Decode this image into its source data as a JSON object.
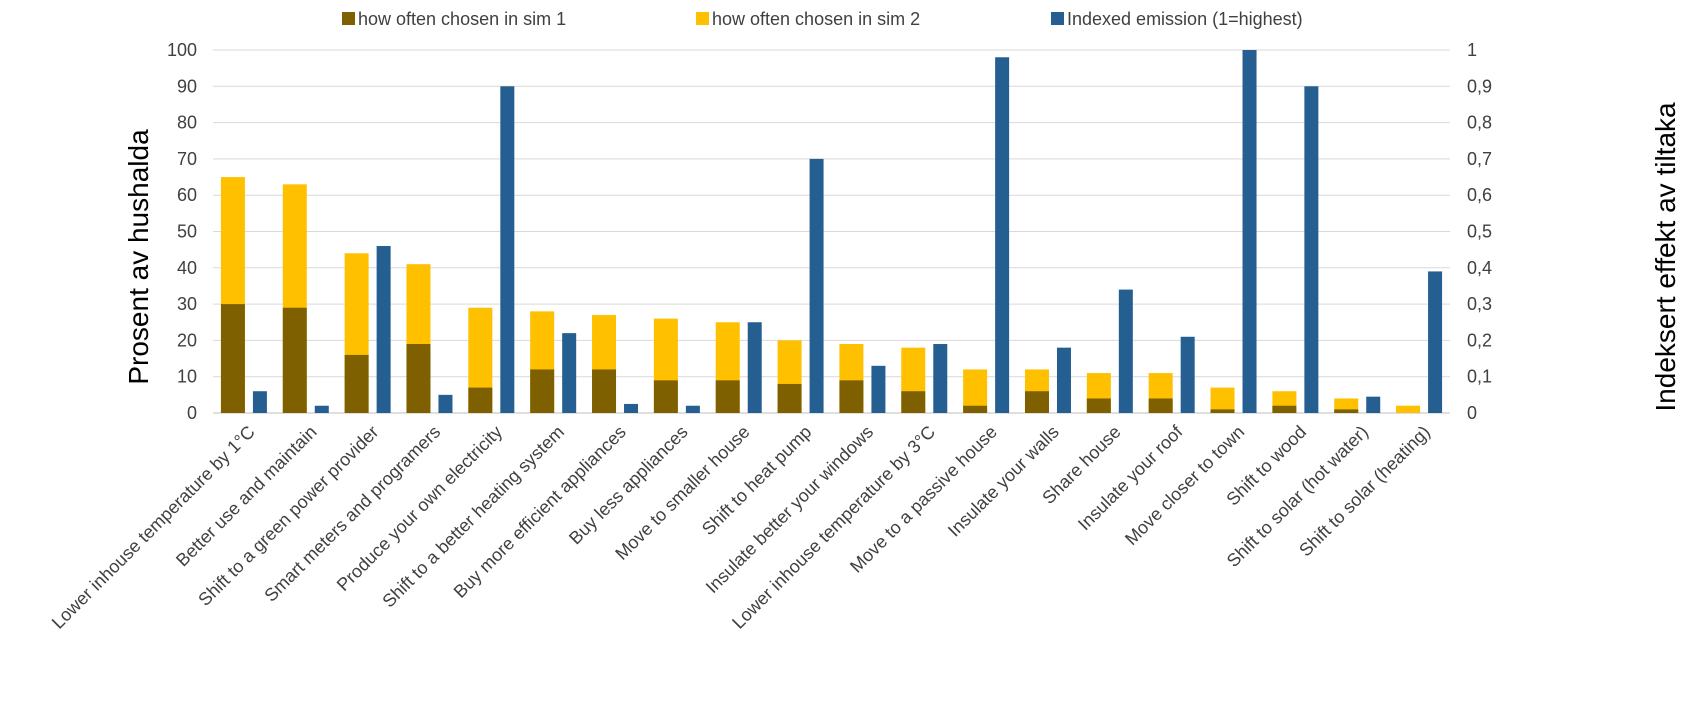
{
  "chart_data": {
    "type": "bar",
    "y_left_label": "Prosent av hushalda",
    "y_right_label": "Indeksert effekt av tiltaka",
    "y_left_ticks": [
      "0",
      "10",
      "20",
      "30",
      "40",
      "50",
      "60",
      "70",
      "80",
      "90",
      "100"
    ],
    "y_right_ticks": [
      "0",
      "0,1",
      "0,2",
      "0,3",
      "0,4",
      "0,5",
      "0,6",
      "0,7",
      "0,8",
      "0,9",
      "1"
    ],
    "ylim_left": [
      0,
      100
    ],
    "ylim_right": [
      0,
      1
    ],
    "grid": true,
    "legend_position": "top",
    "categories": [
      "Lower inhouse temperature by 1°C",
      "Better use and maintain",
      "Shift to a green power provider",
      "Smart meters and programers",
      "Produce your own electricity",
      "Shift to a better heating system",
      "Buy more efficient appliances",
      "Buy less appliances",
      "Move to smaller house",
      "Shift to heat pump",
      "Insulate better your windows",
      "Lower inhouse temperature by 3°C",
      "Move to a passive house",
      "Insulate your walls",
      "Share house",
      "Insulate your roof",
      "Move closer to town",
      "Shift to wood",
      "Shift to solar (hot water)",
      "Shift to solar (heating)"
    ],
    "series": [
      {
        "name": "how often chosen in sim 1",
        "color": "#7f6000",
        "axis": "left",
        "values": [
          30,
          29,
          16,
          19,
          7,
          12,
          12,
          9,
          9,
          8,
          9,
          6,
          2,
          6,
          4,
          4,
          1,
          2,
          1,
          0
        ]
      },
      {
        "name": "how often chosen in sim 2",
        "color": "#ffc000",
        "axis": "left",
        "values": [
          65,
          63,
          44,
          41,
          29,
          28,
          27,
          26,
          25,
          20,
          19,
          18,
          12,
          12,
          11,
          11,
          7,
          6,
          4,
          2
        ]
      },
      {
        "name": "Indexed emission (1=highest)",
        "color": "#255e91",
        "axis": "right",
        "values": [
          0.06,
          0.02,
          0.46,
          0.05,
          0.9,
          0.22,
          0.025,
          0.02,
          0.25,
          0.7,
          0.13,
          0.19,
          0.98,
          0.18,
          0.34,
          0.21,
          1.0,
          0.9,
          0.045,
          0.39
        ]
      }
    ]
  },
  "colors": {
    "gridline": "#d9d9d9",
    "axis_line": "#bfbfbf"
  }
}
